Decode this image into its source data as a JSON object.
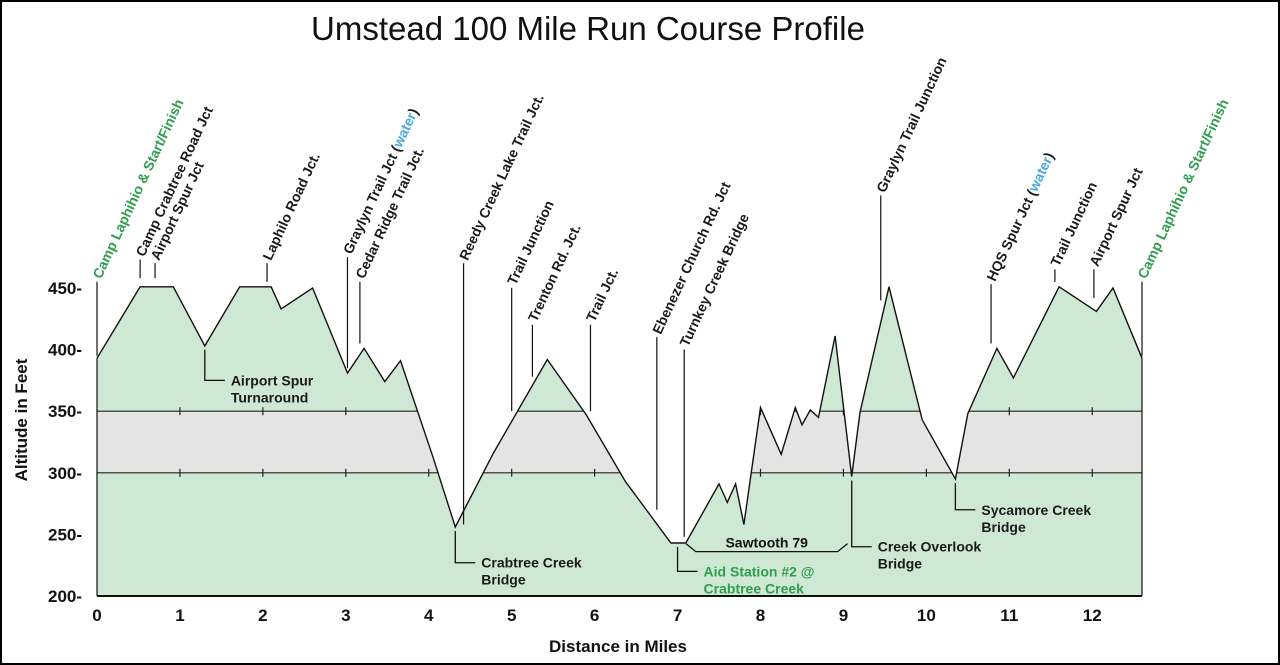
{
  "chart_data": {
    "type": "area",
    "title": "Umstead 100 Mile Run Course Profile",
    "xlabel": "Distance in Miles",
    "ylabel": "Altitude in Feet",
    "xlim": [
      0,
      12.6
    ],
    "ylim": [
      200,
      450
    ],
    "x_ticks": [
      "0",
      "1",
      "2",
      "3",
      "4",
      "5",
      "6",
      "7",
      "8",
      "9",
      "10",
      "11",
      "12"
    ],
    "y_ticks": [
      "200-",
      "250-",
      "300-",
      "350-",
      "400-",
      "450-"
    ],
    "band": [
      300,
      350
    ],
    "colors": {
      "fill": "#cfe8d3",
      "band": "#e4e4e4",
      "green": "#2f9e4f",
      "blue": "#4aa9d9",
      "text": "#1a1a1a"
    },
    "profile": {
      "x": [
        0,
        0.52,
        0.92,
        1.3,
        1.72,
        2.1,
        2.22,
        2.6,
        3.02,
        3.22,
        3.47,
        3.66,
        4.05,
        4.32,
        4.78,
        5.43,
        5.9,
        6.37,
        6.92,
        7.1,
        7.5,
        7.6,
        7.7,
        7.8,
        8.0,
        8.25,
        8.42,
        8.5,
        8.6,
        8.7,
        8.9,
        9.1,
        9.2,
        9.55,
        9.95,
        10.35,
        10.5,
        10.85,
        11.05,
        11.6,
        12.05,
        12.25,
        12.6
      ],
      "y": [
        393,
        451,
        451,
        403,
        451,
        451,
        433,
        450,
        381,
        401,
        374,
        391,
        313,
        256,
        316,
        392,
        347,
        293,
        243,
        243,
        291,
        276,
        291,
        258,
        353,
        315,
        353,
        339,
        351,
        345,
        411,
        297,
        349,
        451,
        343,
        295,
        348,
        401,
        377,
        451,
        431,
        450,
        393
      ]
    },
    "callouts": [
      {
        "x": 0.0,
        "y_top": 395,
        "y_label": 460,
        "parts": [
          {
            "text": "Camp Laphihio & Start/Finish",
            "color": "green"
          }
        ]
      },
      {
        "x": 0.52,
        "y_top": 458,
        "y_label": 478,
        "parts": [
          {
            "text": "Camp Crabtree Road Jct",
            "color": "text"
          }
        ]
      },
      {
        "x": 0.7,
        "y_top": 458,
        "y_label": 475,
        "parts": [
          {
            "text": "Airport Spur Jct",
            "color": "text"
          }
        ]
      },
      {
        "x": 2.05,
        "y_top": 455,
        "y_label": 475,
        "parts": [
          {
            "text": "Laphilo Road Jct.",
            "color": "text"
          }
        ]
      },
      {
        "x": 3.02,
        "y_top": 385,
        "y_label": 480,
        "parts": [
          {
            "text": "Graylyn Trail Jct (",
            "color": "text"
          },
          {
            "text": "water",
            "color": "blue"
          },
          {
            "text": ")",
            "color": "text"
          }
        ]
      },
      {
        "x": 3.17,
        "y_top": 405,
        "y_label": 460,
        "parts": [
          {
            "text": "Cedar Ridge Trail Jct.",
            "color": "text"
          }
        ]
      },
      {
        "x": 4.42,
        "y_top": 258,
        "y_label": 475,
        "parts": [
          {
            "text": "Reedy Creek Lake Trail Jct.",
            "color": "text"
          }
        ]
      },
      {
        "x": 5.0,
        "y_top": 350,
        "y_label": 455,
        "parts": [
          {
            "text": "Trail Junction",
            "color": "text"
          }
        ]
      },
      {
        "x": 5.25,
        "y_top": 378,
        "y_label": 425,
        "parts": [
          {
            "text": "Trenton Rd. Jct.",
            "color": "text"
          }
        ]
      },
      {
        "x": 5.95,
        "y_top": 350,
        "y_label": 425,
        "parts": [
          {
            "text": "Trail Jct.",
            "color": "text"
          }
        ]
      },
      {
        "x": 6.75,
        "y_top": 270,
        "y_label": 415,
        "parts": [
          {
            "text": "Ebenezer Church Rd. Jct",
            "color": "text"
          }
        ]
      },
      {
        "x": 7.08,
        "y_top": 248,
        "y_label": 405,
        "parts": [
          {
            "text": "Turnkey Creek Bridge",
            "color": "text"
          }
        ]
      },
      {
        "x": 9.45,
        "y_top": 440,
        "y_label": 530,
        "parts": [
          {
            "text": "Graylyn Trail Junction",
            "color": "text"
          }
        ]
      },
      {
        "x": 10.78,
        "y_top": 405,
        "y_label": 458,
        "parts": [
          {
            "text": "HQS Spur Jct (",
            "color": "text"
          },
          {
            "text": "water",
            "color": "blue"
          },
          {
            "text": ")",
            "color": "text"
          }
        ]
      },
      {
        "x": 11.55,
        "y_top": 455,
        "y_label": 470,
        "parts": [
          {
            "text": "Trail Junction",
            "color": "text"
          }
        ]
      },
      {
        "x": 12.02,
        "y_top": 442,
        "y_label": 470,
        "parts": [
          {
            "text": "Airport Spur Jct",
            "color": "text"
          }
        ]
      },
      {
        "x": 12.6,
        "y_top": 395,
        "y_label": 460,
        "parts": [
          {
            "text": "Camp Laphihio & Start/Finish",
            "color": "green"
          }
        ]
      }
    ],
    "below_labels": [
      {
        "x": 1.3,
        "y_pt": 403,
        "y_elbow": 375,
        "lines": [
          "Airport Spur",
          "Turnaround"
        ],
        "color": "text"
      },
      {
        "x": 4.32,
        "y_pt": 256,
        "y_elbow": 227,
        "lines": [
          "Crabtree Creek",
          "Bridge"
        ],
        "color": "text"
      },
      {
        "x": 7.0,
        "y_pt": 243,
        "y_elbow": 220,
        "lines": [
          "Aid Station #2 @",
          "Crabtree Creek"
        ],
        "color": "green"
      },
      {
        "x": 9.1,
        "y_pt": 297,
        "y_elbow": 240,
        "lines": [
          "Creek Overlook",
          "Bridge"
        ],
        "color": "text"
      },
      {
        "x": 10.35,
        "y_pt": 295,
        "y_elbow": 270,
        "lines": [
          "Sycamore Creek",
          "Bridge"
        ],
        "color": "text"
      }
    ],
    "section": {
      "label": "Sawtooth 79",
      "x_start": 7.1,
      "x_end": 9.05
    }
  }
}
